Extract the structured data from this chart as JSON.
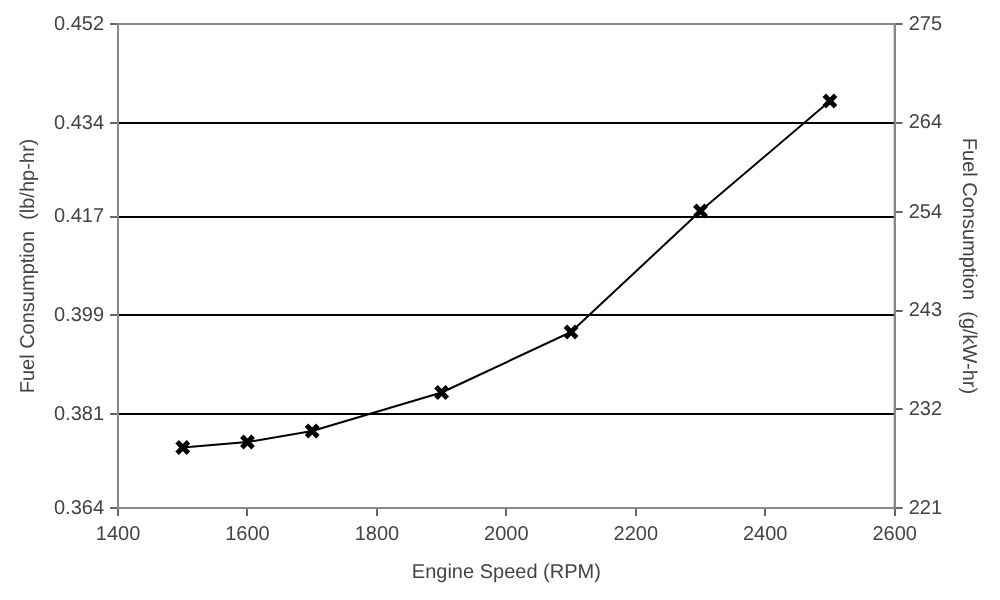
{
  "chart_data": {
    "type": "line",
    "xlabel": "Engine Speed (RPM)",
    "ylabel": "Fuel Consumption  (lb/hp-hr)",
    "y2label": "Fuel Consumption  (g/kW-hr)",
    "x": [
      1500,
      1600,
      1700,
      1900,
      2100,
      2300,
      2500
    ],
    "series": [
      {
        "color": "#000000",
        "values": [
          0.375,
          0.376,
          0.378,
          0.385,
          0.396,
          0.418,
          0.438
        ]
      }
    ],
    "xlim": [
      1400,
      2600
    ],
    "xticks": [
      1400,
      1600,
      1800,
      2000,
      2200,
      2400,
      2600
    ],
    "ylim": [
      0.364,
      0.452
    ],
    "yticks": [
      0.364,
      0.381,
      0.399,
      0.417,
      0.434,
      0.452
    ],
    "y2lim": [
      221,
      275
    ],
    "y2ticks": [
      221,
      232,
      243,
      254,
      264,
      275
    ],
    "grid": "y",
    "marker": "cross",
    "line_style": "solid",
    "legend": false
  }
}
